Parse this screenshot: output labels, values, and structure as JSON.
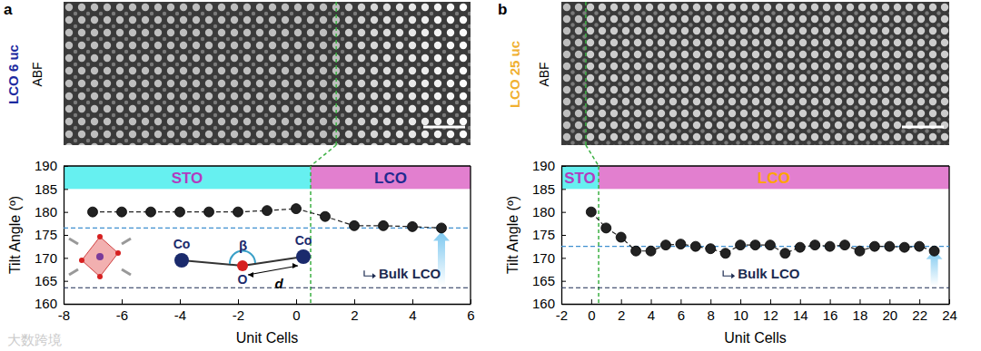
{
  "chart_data": [
    {
      "type": "line",
      "panel_label": "a",
      "image_title": "LCO 6 uc",
      "image_title_color": "#1c2aa0",
      "image_label": "ABF",
      "x_label": "Unit Cells",
      "y_label": "Tilt Angle (º)",
      "x": [
        -7,
        -6,
        -5,
        -4,
        -3,
        -2,
        -1,
        0,
        1,
        2,
        3,
        4,
        5
      ],
      "values": [
        180,
        180,
        180,
        180,
        180,
        180,
        180.3,
        180.7,
        179,
        177,
        177,
        176.8,
        176.5
      ],
      "errors": [
        0.3,
        0.3,
        0.3,
        0.3,
        0.3,
        0.3,
        0.3,
        0.4,
        0.6,
        0.5,
        0.4,
        0.4,
        0.4
      ],
      "color": "#222222",
      "marker": "circle",
      "line_style": "dashed",
      "xlim": [
        -8,
        6
      ],
      "xticks": [
        -8,
        -6,
        -4,
        -2,
        0,
        2,
        4,
        6
      ],
      "ylim": [
        160,
        190
      ],
      "yticks": [
        160,
        165,
        170,
        175,
        180,
        185,
        190
      ],
      "interface": 0.5,
      "band": [
        185,
        190
      ],
      "regions": [
        {
          "label": "STO",
          "from": -8,
          "to": 0.5,
          "color": "#66f0f0",
          "label_color": "#b23cbf"
        },
        {
          "label": "LCO",
          "from": 0.5,
          "to": 6,
          "color": "#e27fcf",
          "label_color": "#1f2a8f"
        }
      ],
      "reference_lines": [
        {
          "value": 176.5,
          "color": "#3f8fd0",
          "line_style": "dashed"
        },
        {
          "value": 163.5,
          "label": "Bulk LCO",
          "color": "#1b2a50",
          "line_style": "dashed"
        }
      ],
      "inset": {
        "atoms": [
          "Co",
          "O",
          "Co"
        ],
        "angle": "β",
        "distance": "d"
      }
    },
    {
      "type": "line",
      "panel_label": "b",
      "image_title": "LCO 25 uc",
      "image_title_color": "#f0b030",
      "image_label": "ABF",
      "x_label": "Unit Cells",
      "y_label": "Tilt Angle (º)",
      "x": [
        0,
        1,
        2,
        3,
        4,
        5,
        6,
        7,
        8,
        9,
        10,
        11,
        12,
        13,
        14,
        15,
        16,
        17,
        18,
        19,
        20,
        21,
        22,
        23
      ],
      "values": [
        180,
        176.5,
        174.5,
        171.5,
        171.5,
        172.8,
        173,
        172.5,
        172,
        171,
        172.8,
        172.8,
        172.8,
        171,
        172.3,
        172.8,
        172.5,
        172.8,
        171.5,
        172.5,
        172.5,
        172.3,
        172.5,
        171.5
      ],
      "errors": [
        0.3,
        0.4,
        0.5,
        0.3,
        0.3,
        0.3,
        0.3,
        0.3,
        0.3,
        0.4,
        0.3,
        0.3,
        0.3,
        0.4,
        0.3,
        0.3,
        0.3,
        0.3,
        0.3,
        0.3,
        0.3,
        0.3,
        0.3,
        0.4
      ],
      "color": "#222222",
      "marker": "circle",
      "line_style": "dashed",
      "xlim": [
        -2,
        24
      ],
      "xticks": [
        -2,
        0,
        2,
        4,
        6,
        8,
        10,
        12,
        14,
        16,
        18,
        20,
        22,
        24
      ],
      "ylim": [
        160,
        190
      ],
      "yticks": [
        160,
        165,
        170,
        175,
        180,
        185,
        190
      ],
      "interface": 0.5,
      "band": [
        185,
        190
      ],
      "regions": [
        {
          "label": "STO",
          "from": -2,
          "to": 0.5,
          "color": "#66f0f0",
          "label_color": "#b23cbf"
        },
        {
          "label": "LCO",
          "from": 0.5,
          "to": 24,
          "color": "#e27fcf",
          "label_color": "#ffa500"
        }
      ],
      "reference_lines": [
        {
          "value": 172.5,
          "color": "#3f8fd0",
          "line_style": "dashed"
        },
        {
          "value": 163.5,
          "label": "Bulk LCO",
          "color": "#1b2a50",
          "line_style": "dashed"
        }
      ]
    }
  ],
  "watermark": "大数跨境"
}
